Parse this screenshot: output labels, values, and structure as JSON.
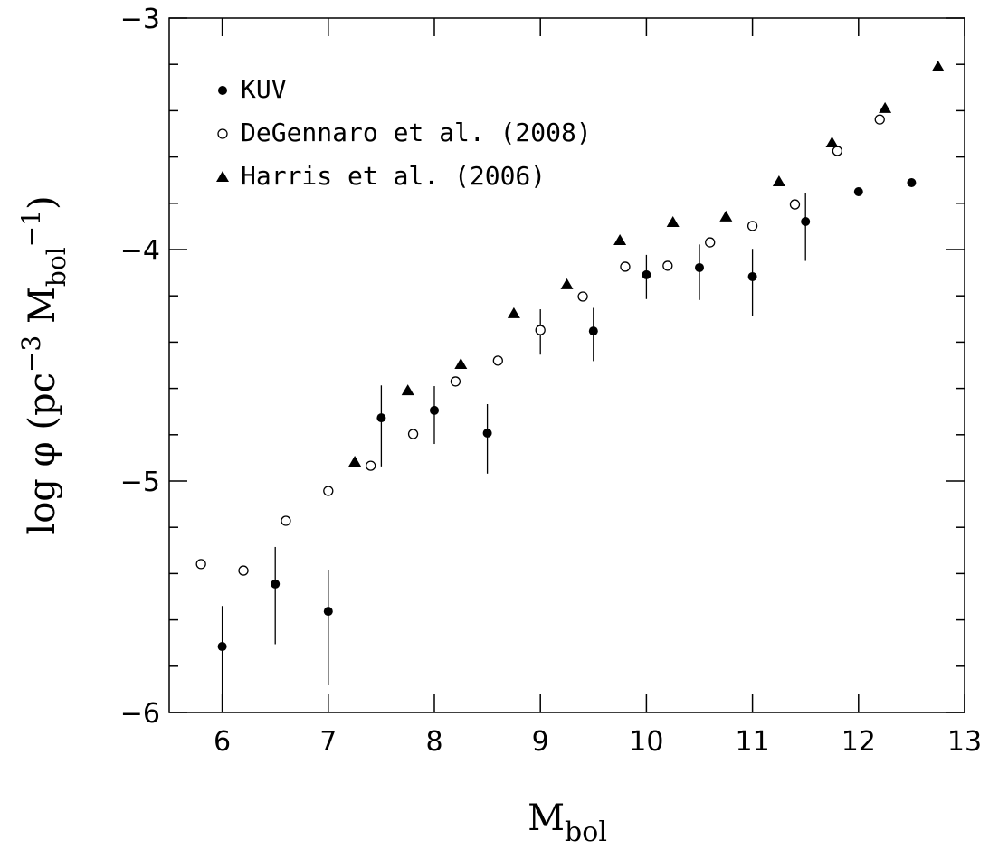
{
  "chart_data": {
    "type": "scatter",
    "x_label": {
      "main": "M",
      "sub": "bol"
    },
    "y_label": {
      "main": "log φ (pc",
      "sup1": "−3",
      "mid": " M",
      "sub": "bol",
      "sup2": "−1",
      "end": ")"
    },
    "xlim": [
      5.5,
      13
    ],
    "ylim": [
      -6,
      -3
    ],
    "xticks": [
      6,
      7,
      8,
      9,
      10,
      11,
      12,
      13
    ],
    "yticks": [
      {
        "value": -6,
        "label": "−6"
      },
      {
        "value": -5,
        "label": "−5"
      },
      {
        "value": -4,
        "label": "−4"
      },
      {
        "value": -3,
        "label": "−3"
      }
    ],
    "yminorticks": [
      -5.8,
      -5.6,
      -5.4,
      -5.2,
      -4.8,
      -4.6,
      -4.4,
      -4.2,
      -3.8,
      -3.6,
      -3.4,
      -3.2
    ],
    "legend": "upper left",
    "series": [
      {
        "name": "KUV",
        "marker": "filled-circle",
        "color": "#000000",
        "x": [
          6,
          6.5,
          7,
          7.5,
          8,
          8.5,
          9,
          9.5,
          10,
          10.5,
          11,
          11.5,
          12,
          12.5
        ],
        "values": [
          -5.715,
          -5.445,
          -5.563,
          -4.727,
          -4.695,
          -4.793,
          -4.344,
          -4.352,
          -4.109,
          -4.078,
          -4.117,
          -3.879,
          -3.75,
          -3.711
        ],
        "yerr_high": [
          0.175,
          0.16,
          0.18,
          0.14,
          0.105,
          0.125,
          0.086,
          0.1,
          0.086,
          0.1,
          0.12,
          0.125,
          null,
          null
        ],
        "yerr_low": [
          0.3,
          0.26,
          0.32,
          0.21,
          0.145,
          0.175,
          0.11,
          0.13,
          0.105,
          0.14,
          0.17,
          0.17,
          null,
          null
        ]
      },
      {
        "name": "DeGennaro et al. (2008)",
        "marker": "open-circle",
        "color": "#000000",
        "x": [
          5.8,
          6.2,
          6.6,
          7.0,
          7.4,
          7.8,
          8.2,
          8.6,
          9.0,
          9.4,
          9.8,
          10.2,
          10.6,
          11.0,
          11.4,
          11.8,
          12.2
        ],
        "values": [
          -5.359,
          -5.387,
          -5.172,
          -5.043,
          -4.934,
          -4.797,
          -4.57,
          -4.48,
          -4.348,
          -4.203,
          -4.074,
          -4.07,
          -3.969,
          -3.898,
          -3.805,
          -3.574,
          -3.438
        ]
      },
      {
        "name": "Harris et al. (2006)",
        "marker": "triangle",
        "color": "#000000",
        "x": [
          7.25,
          7.75,
          8.25,
          8.75,
          9.25,
          9.75,
          10.25,
          10.75,
          11.25,
          11.75,
          12.25,
          12.75
        ],
        "values": [
          -4.918,
          -4.61,
          -4.496,
          -4.277,
          -4.152,
          -3.961,
          -3.883,
          -3.859,
          -3.707,
          -3.539,
          -3.39,
          -3.211
        ]
      }
    ]
  }
}
